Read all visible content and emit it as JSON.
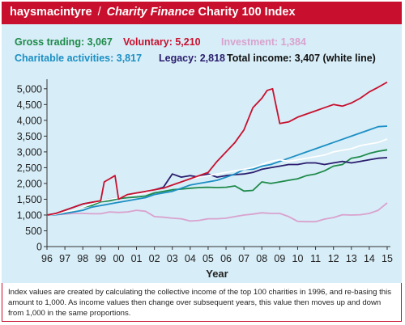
{
  "header": {
    "brand": "haysmacintyre",
    "separator": "/",
    "publication": "Charity Finance",
    "title": "Charity 100 Index"
  },
  "legend": [
    {
      "label": "Gross trading: 3,067",
      "color": "#1e8a4a"
    },
    {
      "label": "Voluntary: 5,210",
      "color": "#c8102e"
    },
    {
      "label": "Investment: 1,384",
      "color": "#d9a2cf"
    },
    {
      "label": "Charitable activities: 3,817",
      "color": "#1b8fc4"
    },
    {
      "label": "Legacy: 2,818",
      "color": "#2a1d6e"
    },
    {
      "label": "Total income: 3,407 (white line)",
      "color": "#111111"
    }
  ],
  "footnote": "Index values are created by calculating the collective income of the top 100 charities in 1996, and re-basing this amount to 1,000. As income values then change over subsequent years, this value then moves up and down from 1,000 in the same proportions.",
  "chart_data": {
    "type": "line",
    "xlabel": "Year",
    "ylabel": "",
    "x_ticks": [
      "96",
      "97",
      "98",
      "99",
      "00",
      "01",
      "02",
      "03",
      "04",
      "05",
      "06",
      "07",
      "08",
      "09",
      "10",
      "11",
      "12",
      "13",
      "14",
      "15"
    ],
    "y_ticks": [
      "0",
      "500",
      "1,000",
      "1,500",
      "2,000",
      "2,500",
      "3,000",
      "3,500",
      "4,000",
      "4,500",
      "5,000"
    ],
    "xlim": [
      96,
      115
    ],
    "ylim": [
      0,
      5200
    ],
    "grid": false,
    "series": [
      {
        "name": "Investment",
        "color": "#d9a2cf",
        "x": [
          96,
          96.5,
          97,
          97.5,
          98,
          98.5,
          99,
          99.5,
          100,
          100.5,
          101,
          101.5,
          102,
          102.5,
          103,
          103.5,
          104,
          104.5,
          105,
          105.5,
          106,
          106.5,
          107,
          107.5,
          108,
          108.5,
          109,
          109.5,
          110,
          110.5,
          111,
          111.5,
          112,
          112.5,
          113,
          113.5,
          114,
          114.5,
          115
        ],
        "values": [
          1000,
          1010,
          1030,
          1050,
          1050,
          1040,
          1040,
          1100,
          1080,
          1100,
          1150,
          1120,
          950,
          930,
          900,
          880,
          810,
          830,
          880,
          880,
          900,
          950,
          1000,
          1030,
          1070,
          1050,
          1050,
          950,
          800,
          790,
          790,
          870,
          920,
          1010,
          1000,
          1010,
          1050,
          1150,
          1384
        ]
      },
      {
        "name": "Gross trading",
        "color": "#1e8a4a",
        "x": [
          96,
          96.5,
          97,
          97.5,
          98,
          98.5,
          99,
          99.5,
          100,
          100.5,
          101,
          101.5,
          102,
          102.5,
          103,
          103.5,
          104,
          104.5,
          105,
          105.5,
          106,
          106.5,
          107,
          107.5,
          108,
          108.5,
          109,
          109.5,
          110,
          110.5,
          111,
          111.5,
          112,
          112.5,
          113,
          113.5,
          114,
          114.5,
          115
        ],
        "values": [
          1000,
          1020,
          1080,
          1150,
          1250,
          1300,
          1420,
          1450,
          1520,
          1550,
          1570,
          1600,
          1700,
          1750,
          1800,
          1820,
          1850,
          1870,
          1880,
          1870,
          1880,
          1920,
          1760,
          1780,
          2050,
          2000,
          2050,
          2100,
          2150,
          2250,
          2300,
          2400,
          2550,
          2600,
          2800,
          2850,
          2950,
          3020,
          3067
        ]
      },
      {
        "name": "Legacy",
        "color": "#2a1d6e",
        "x": [
          96,
          96.5,
          97,
          97.5,
          98,
          98.5,
          99,
          99.5,
          100,
          100.5,
          101,
          101.5,
          102,
          102.5,
          103,
          103.5,
          104,
          104.5,
          105,
          105.5,
          106,
          106.5,
          107,
          107.5,
          108,
          108.5,
          109,
          109.5,
          110,
          110.5,
          111,
          111.5,
          112,
          112.5,
          113,
          113.5,
          114,
          114.5,
          115
        ],
        "values": [
          1000,
          1050,
          1150,
          1250,
          1350,
          1400,
          1450,
          1500,
          1550,
          1600,
          1650,
          1720,
          1800,
          1880,
          2300,
          2200,
          2250,
          2200,
          2300,
          2200,
          2250,
          2280,
          2300,
          2350,
          2450,
          2500,
          2550,
          2600,
          2600,
          2650,
          2650,
          2600,
          2650,
          2700,
          2650,
          2700,
          2750,
          2800,
          2818
        ]
      },
      {
        "name": "Charitable activities",
        "color": "#1b8fc4",
        "x": [
          96,
          96.5,
          97,
          97.5,
          98,
          98.5,
          99,
          99.5,
          100,
          100.5,
          101,
          101.5,
          102,
          102.5,
          103,
          103.5,
          104,
          104.5,
          105,
          105.5,
          106,
          106.5,
          107,
          107.5,
          108,
          108.5,
          109,
          109.5,
          110,
          110.5,
          111,
          111.5,
          112,
          112.5,
          113,
          113.5,
          114,
          114.5,
          115
        ],
        "values": [
          1000,
          1010,
          1050,
          1100,
          1150,
          1250,
          1300,
          1350,
          1400,
          1450,
          1500,
          1550,
          1650,
          1700,
          1750,
          1850,
          1950,
          2000,
          2050,
          2100,
          2200,
          2300,
          2450,
          2450,
          2550,
          2600,
          2700,
          2800,
          2900,
          3000,
          3100,
          3200,
          3300,
          3400,
          3500,
          3600,
          3700,
          3800,
          3817
        ]
      },
      {
        "name": "Total income",
        "color": "#ffffff",
        "x": [
          96,
          96.5,
          97,
          97.5,
          98,
          98.5,
          99,
          99.5,
          100,
          100.5,
          101,
          101.5,
          102,
          102.5,
          103,
          103.5,
          104,
          104.5,
          105,
          105.5,
          106,
          106.5,
          107,
          107.5,
          108,
          108.5,
          109,
          109.5,
          110,
          110.5,
          111,
          111.5,
          112,
          112.5,
          113,
          113.5,
          114,
          114.5,
          115
        ],
        "values": [
          1000,
          1030,
          1100,
          1150,
          1250,
          1350,
          1450,
          1500,
          1550,
          1600,
          1650,
          1700,
          1800,
          1850,
          1950,
          2050,
          2150,
          2200,
          2250,
          2300,
          2350,
          2400,
          2450,
          2500,
          2600,
          2700,
          2750,
          2700,
          2750,
          2800,
          2850,
          2900,
          3000,
          3050,
          3100,
          3200,
          3250,
          3300,
          3407
        ]
      },
      {
        "name": "Voluntary",
        "color": "#c8102e",
        "x": [
          96,
          96.5,
          97,
          97.5,
          98,
          98.5,
          99,
          99.2,
          99.5,
          99.8,
          100,
          100.5,
          101,
          101.5,
          102,
          102.5,
          103,
          103.5,
          104,
          104.5,
          105,
          105.5,
          106,
          106.5,
          107,
          107.5,
          108,
          108.3,
          108.6,
          109,
          109.5,
          110,
          110.5,
          111,
          111.5,
          112,
          112.5,
          113,
          113.5,
          114,
          114.5,
          115
        ],
        "values": [
          1000,
          1050,
          1150,
          1250,
          1350,
          1400,
          1450,
          2050,
          2150,
          2250,
          1500,
          1650,
          1700,
          1750,
          1800,
          1850,
          1950,
          2050,
          2150,
          2250,
          2350,
          2700,
          3000,
          3300,
          3700,
          4400,
          4700,
          4950,
          5000,
          3900,
          3950,
          4100,
          4200,
          4300,
          4400,
          4500,
          4450,
          4550,
          4700,
          4900,
          5050,
          5210
        ]
      }
    ]
  }
}
